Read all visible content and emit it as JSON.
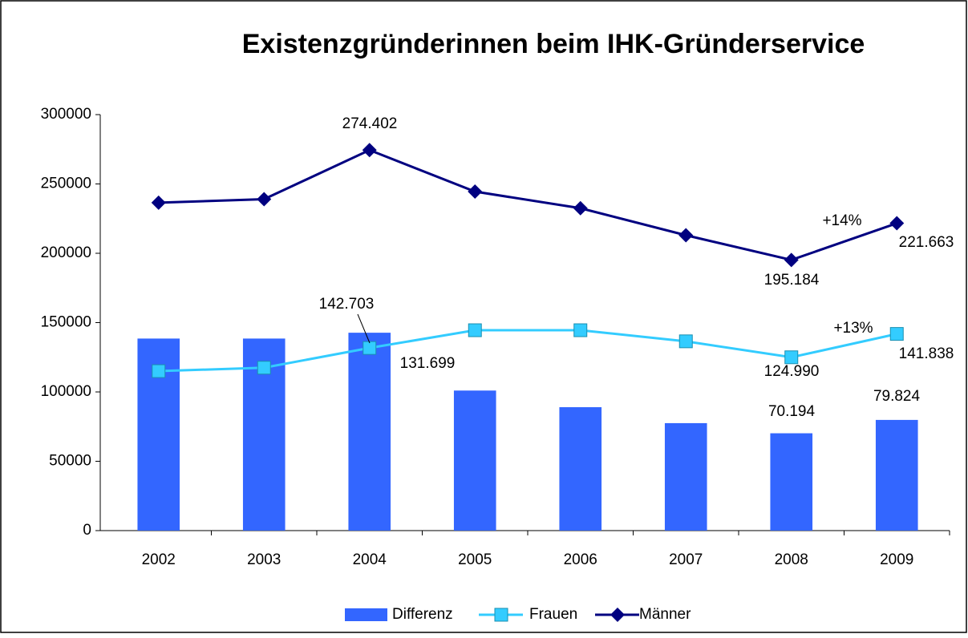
{
  "chart_data": {
    "type": "bar-line",
    "title": "Existenzgründerinnen beim IHK-Gründerservice",
    "categories": [
      "2002",
      "2003",
      "2004",
      "2005",
      "2006",
      "2007",
      "2008",
      "2009"
    ],
    "series": [
      {
        "name": "Differenz",
        "type": "bar",
        "color": "#3366ff",
        "values": [
          138500,
          138500,
          142703,
          101000,
          89000,
          77500,
          70194,
          79824
        ],
        "value_labels": [
          null,
          null,
          "142.703",
          null,
          null,
          null,
          "70.194",
          "79.824"
        ]
      },
      {
        "name": "Frauen",
        "type": "line",
        "marker": "square",
        "color": "#33ccff",
        "values": [
          115000,
          117500,
          131699,
          144500,
          144500,
          136500,
          124990,
          141838
        ],
        "value_labels": [
          null,
          null,
          "131.699",
          null,
          null,
          null,
          "124.990",
          "141.838"
        ]
      },
      {
        "name": "Männer",
        "type": "line",
        "marker": "diamond",
        "color": "#000080",
        "values": [
          236500,
          239000,
          274402,
          244500,
          232500,
          213000,
          195184,
          221663
        ],
        "value_labels": [
          null,
          null,
          "274.402",
          null,
          null,
          null,
          "195.184",
          "221.663"
        ]
      }
    ],
    "annotations": [
      "+14%",
      "+13%"
    ],
    "ylim": [
      0,
      300000
    ],
    "yticks": [
      0,
      50000,
      100000,
      150000,
      200000,
      250000,
      300000
    ],
    "legend": "bottom"
  }
}
